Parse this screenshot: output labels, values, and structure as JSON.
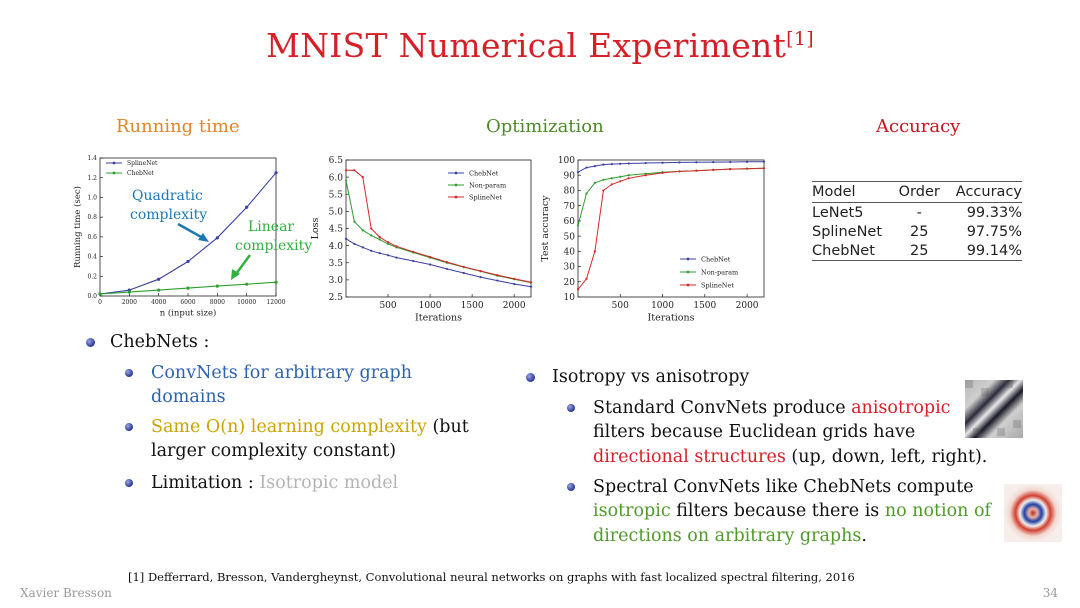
{
  "slide": {
    "title": "MNIST Numerical Experiment",
    "title_ref": "[1]",
    "author": "Xavier Bresson",
    "page_number": "34",
    "footnote": "[1] Defferrard, Bresson, Vandergheynst, Convolutional neural networks on graphs with fast localized spectral filtering, 2016"
  },
  "headings": {
    "running_time": "Running time",
    "optimization": "Optimization",
    "accuracy": "Accuracy"
  },
  "colors": {
    "title": "#d61f26",
    "running_time": "#e2862a",
    "optimization": "#4e8a2a",
    "accuracy": "#c5161d",
    "chebnet": "#3a3fa0",
    "nonparam": "#2ca02c",
    "splinenet": "#d62728",
    "annot_blue": "#1f77b4",
    "annot_green": "#32b040"
  },
  "annotations": {
    "quadratic_line1": "Quadratic",
    "quadratic_line2": "complexity",
    "linear_line1": "Linear",
    "linear_line2": "complexity"
  },
  "chart_data": [
    {
      "type": "line",
      "title": "",
      "xlabel": "n (input size)",
      "ylabel": "Running time (sec)",
      "xlim": [
        0,
        12000
      ],
      "ylim": [
        0,
        1.4
      ],
      "xticks": [
        "0",
        "2000",
        "4000",
        "6000",
        "8000",
        "10000",
        "12000"
      ],
      "yticks": [
        "0.0",
        "0.2",
        "0.4",
        "0.6",
        "0.8",
        "1.0",
        "1.2",
        "1.4"
      ],
      "legend": [
        "SplineNet",
        "ChebNet"
      ],
      "x": [
        0,
        2000,
        4000,
        6000,
        8000,
        10000,
        12000
      ],
      "series": [
        {
          "name": "SplineNet",
          "values": [
            0.02,
            0.06,
            0.17,
            0.35,
            0.59,
            0.9,
            1.25
          ]
        },
        {
          "name": "ChebNet",
          "values": [
            0.02,
            0.04,
            0.06,
            0.08,
            0.1,
            0.12,
            0.14
          ]
        }
      ]
    },
    {
      "type": "line",
      "title": "",
      "xlabel": "Iterations",
      "ylabel": "Loss",
      "xlim": [
        0,
        2200
      ],
      "ylim": [
        2.5,
        6.5
      ],
      "xticks": [
        "500",
        "1000",
        "1500",
        "2000"
      ],
      "yticks": [
        "2.5",
        "3.0",
        "3.5",
        "4.0",
        "4.5",
        "5.0",
        "5.5",
        "6.0",
        "6.5"
      ],
      "legend": [
        "ChebNet",
        "Non-param",
        "SplineNet"
      ],
      "x": [
        0,
        100,
        200,
        300,
        400,
        500,
        600,
        800,
        1000,
        1200,
        1400,
        1600,
        1800,
        2000,
        2200
      ],
      "series": [
        {
          "name": "ChebNet",
          "values": [
            4.2,
            4.05,
            3.95,
            3.85,
            3.78,
            3.72,
            3.65,
            3.55,
            3.45,
            3.32,
            3.2,
            3.08,
            2.98,
            2.88,
            2.8
          ]
        },
        {
          "name": "Non-param",
          "values": [
            5.9,
            4.7,
            4.45,
            4.3,
            4.18,
            4.05,
            3.95,
            3.8,
            3.65,
            3.5,
            3.37,
            3.25,
            3.12,
            3.02,
            2.92
          ]
        },
        {
          "name": "SplineNet",
          "values": [
            6.2,
            6.2,
            6.0,
            4.5,
            4.25,
            4.1,
            3.98,
            3.82,
            3.67,
            3.52,
            3.38,
            3.26,
            3.14,
            3.03,
            2.93
          ]
        }
      ]
    },
    {
      "type": "line",
      "title": "",
      "xlabel": "Iterations",
      "ylabel": "Test accuracy",
      "xlim": [
        0,
        2200
      ],
      "ylim": [
        10,
        100
      ],
      "xticks": [
        "500",
        "1000",
        "1500",
        "2000"
      ],
      "yticks": [
        "10",
        "20",
        "30",
        "40",
        "50",
        "60",
        "70",
        "80",
        "90",
        "100"
      ],
      "legend": [
        "ChebNet",
        "Non-param",
        "SplineNet"
      ],
      "x": [
        0,
        100,
        200,
        300,
        400,
        500,
        600,
        800,
        1000,
        1200,
        1400,
        1600,
        1800,
        2000,
        2200
      ],
      "series": [
        {
          "name": "ChebNet",
          "values": [
            92,
            95,
            96,
            97,
            97.3,
            97.5,
            97.7,
            98,
            98.2,
            98.4,
            98.5,
            98.6,
            98.7,
            98.8,
            98.9
          ]
        },
        {
          "name": "Non-param",
          "values": [
            57,
            78,
            85,
            87,
            88,
            89,
            90,
            91,
            92,
            92.5,
            93,
            93.5,
            94,
            94.3,
            94.6
          ]
        },
        {
          "name": "SplineNet",
          "values": [
            15,
            22,
            40,
            80,
            84,
            86,
            88,
            90,
            91.5,
            92.5,
            93,
            93.5,
            94,
            94.3,
            94.6
          ]
        }
      ]
    }
  ],
  "accuracy_table": {
    "headers": [
      "Model",
      "Order",
      "Accuracy"
    ],
    "rows": [
      [
        "LeNet5",
        "-",
        "99.33%"
      ],
      [
        "SplineNet",
        "25",
        "97.75%"
      ],
      [
        "ChebNet",
        "25",
        "99.14%"
      ]
    ]
  },
  "left_bullets": {
    "main": "ChebNets :",
    "sub1_line1": "ConvNets for arbitrary graph",
    "sub1_line2": "domains",
    "sub2_colored": "Same O(n) learning complexity",
    "sub2_rest": " (but",
    "sub2_line2": "larger complexity constant)",
    "sub3_label": "Limitation : ",
    "sub3_value": "Isotropic model"
  },
  "right_bullets": {
    "main": "Isotropy vs anisotropy",
    "a_line1_start": "Standard ConvNets produce ",
    "a_line1_red": "anisotropic",
    "a_line2": "filters because Euclidean grids have",
    "a_line3_red": "directional structures",
    "a_line3_rest": " (up, down, left, right).",
    "b_line1": "Spectral ConvNets like ChebNets compute",
    "b_line2_green": "isotropic",
    "b_line2_mid": " filters because there is ",
    "b_line2_green2": "no notion of",
    "b_line3_green": "directions on arbitrary graphs",
    "b_line3_rest": "."
  }
}
